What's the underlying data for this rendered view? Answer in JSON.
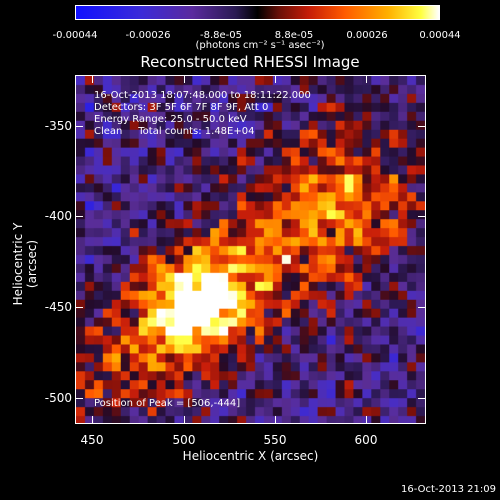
{
  "colorbar": {
    "ticks": [
      "-0.00044",
      "-0.00026",
      "-8.8e-05",
      "8.8e-05",
      "0.00026",
      "0.00044"
    ],
    "unit": "(photons cm⁻² s⁻¹ asec⁻²)"
  },
  "title": "Reconstructed RHESSI Image",
  "info": {
    "line1": "16-Oct-2013 18:07:48.000 to 18:11:22.000",
    "line2": "Detectors: 3F 5F 6F 7F 8F 9F, Att 0",
    "line3": "Energy Range: 25.0 - 50.0 keV",
    "line4": "Clean     Total counts: 1.48E+04",
    "peak": "Position of Peak = [506,-444]"
  },
  "axes": {
    "xlabel": "Heliocentric X (arcsec)",
    "ylabel": "Heliocentric Y (arcsec)",
    "xticks": [
      "450",
      "500",
      "550",
      "600"
    ],
    "yticks": [
      "-350",
      "-400",
      "-450",
      "-500"
    ]
  },
  "timestamp": "16-Oct-2013 21:09"
}
